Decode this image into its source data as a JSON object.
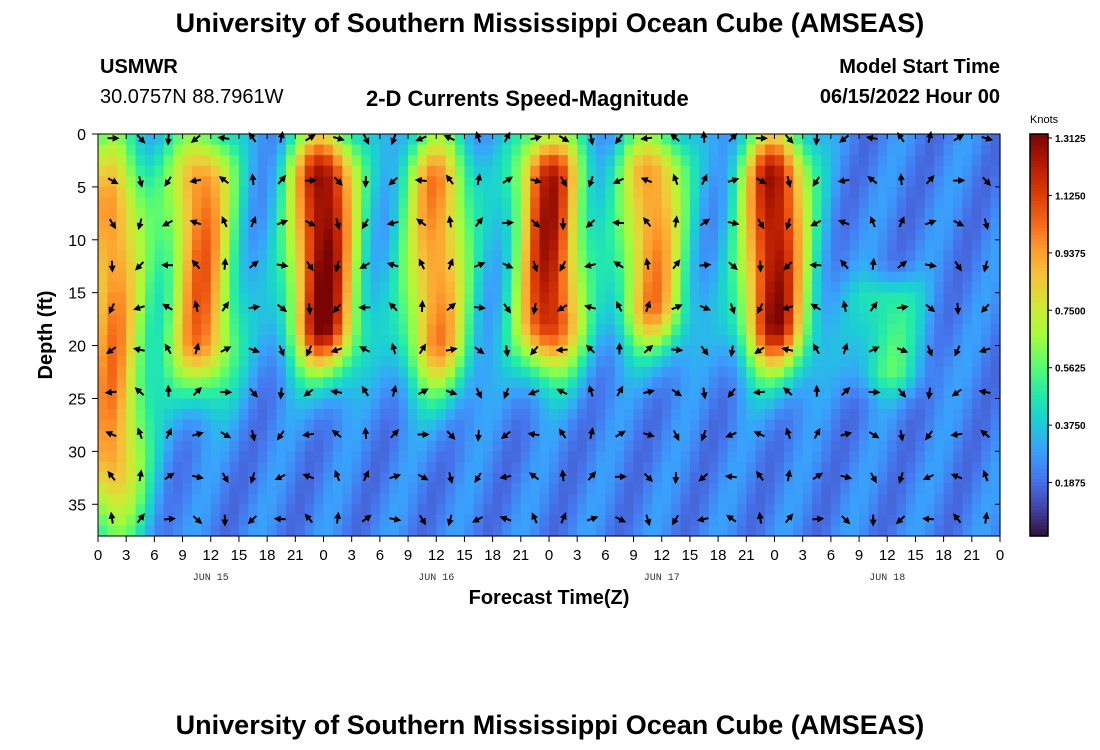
{
  "header": {
    "title": "University of Southern Mississippi Ocean Cube (AMSEAS)",
    "station_name": "USMWR",
    "station_coords": "30.0757N  88.7961W",
    "product": "2-D Currents Speed-Magnitude",
    "model_start_label": "Model Start Time",
    "model_start_value": "06/15/2022 Hour 00"
  },
  "footer": {
    "title": "University of Southern Mississippi Ocean Cube (AMSEAS)"
  },
  "chart_data": {
    "type": "heatmap",
    "title": "2-D Currents Speed-Magnitude",
    "xlabel": "Forecast Time(Z)",
    "ylabel": "Depth (ft)",
    "x_unit": "hours since 06/15/2022 00Z",
    "xlim": [
      0,
      96
    ],
    "ylim": [
      0,
      38
    ],
    "x_tick_values": [
      0,
      3,
      6,
      9,
      12,
      15,
      18,
      21,
      24,
      27,
      30,
      33,
      36,
      39,
      42,
      45,
      48,
      51,
      54,
      57,
      60,
      63,
      66,
      69,
      72,
      75,
      78,
      81,
      84,
      87,
      90,
      93,
      96
    ],
    "x_tick_labels": [
      "0",
      "3",
      "6",
      "9",
      "12",
      "15",
      "18",
      "21",
      "0",
      "3",
      "6",
      "9",
      "12",
      "15",
      "18",
      "21",
      "0",
      "3",
      "6",
      "9",
      "12",
      "15",
      "18",
      "21",
      "0",
      "3",
      "6",
      "9",
      "12",
      "15",
      "18",
      "21",
      "0"
    ],
    "y_ticks": [
      0,
      5,
      10,
      15,
      20,
      25,
      30,
      35
    ],
    "day_labels": [
      {
        "label": "JUN 15",
        "hour": 12
      },
      {
        "label": "JUN 16",
        "hour": 36
      },
      {
        "label": "JUN 17",
        "hour": 60
      },
      {
        "label": "JUN 18",
        "hour": 84
      }
    ],
    "colorbar": {
      "unit": "Knots",
      "min": 0.0,
      "max": 1.3125,
      "ticks": [
        "1.3125",
        "1.1250",
        "0.9375",
        "0.7500",
        "0.5625",
        "0.3750",
        "0.1875"
      ],
      "tick_values": [
        1.3125,
        1.125,
        0.9375,
        0.75,
        0.5625,
        0.375,
        0.1875
      ],
      "colors": [
        "#30123b",
        "#4145ab",
        "#4675ed",
        "#39a2fc",
        "#1bcfd4",
        "#24eca6",
        "#61fc6c",
        "#a4fc3b",
        "#d1e834",
        "#f3c63a",
        "#fe9b2d",
        "#f36315",
        "#d93807",
        "#b11901",
        "#7a0403"
      ]
    },
    "speed_peaks": [
      {
        "hour": 1.5,
        "depth_min": 0,
        "depth_max": 38,
        "peak": 0.95
      },
      {
        "hour": 11,
        "depth_min": 0,
        "depth_max": 24,
        "peak": 1.0
      },
      {
        "hour": 24,
        "depth_min": 0,
        "depth_max": 22,
        "peak": 1.3
      },
      {
        "hour": 36,
        "depth_min": 0,
        "depth_max": 24,
        "peak": 0.95
      },
      {
        "hour": 48,
        "depth_min": 0,
        "depth_max": 22,
        "peak": 1.2
      },
      {
        "hour": 59,
        "depth_min": 0,
        "depth_max": 20,
        "peak": 0.95
      },
      {
        "hour": 72,
        "depth_min": 0,
        "depth_max": 22,
        "peak": 1.25
      },
      {
        "hour": 84,
        "depth_min": 14,
        "depth_max": 24,
        "peak": 0.5
      }
    ],
    "vector_grid": {
      "hours": [
        0,
        3,
        6,
        9,
        12,
        15,
        18,
        21,
        24,
        27,
        30,
        33,
        36,
        39,
        42,
        45,
        48,
        51,
        54,
        57,
        60,
        63,
        66,
        69,
        72,
        75,
        78,
        81,
        84,
        87,
        90,
        93
      ],
      "depths": [
        0,
        4,
        8,
        12,
        16,
        20,
        24,
        28,
        32,
        36
      ]
    }
  }
}
